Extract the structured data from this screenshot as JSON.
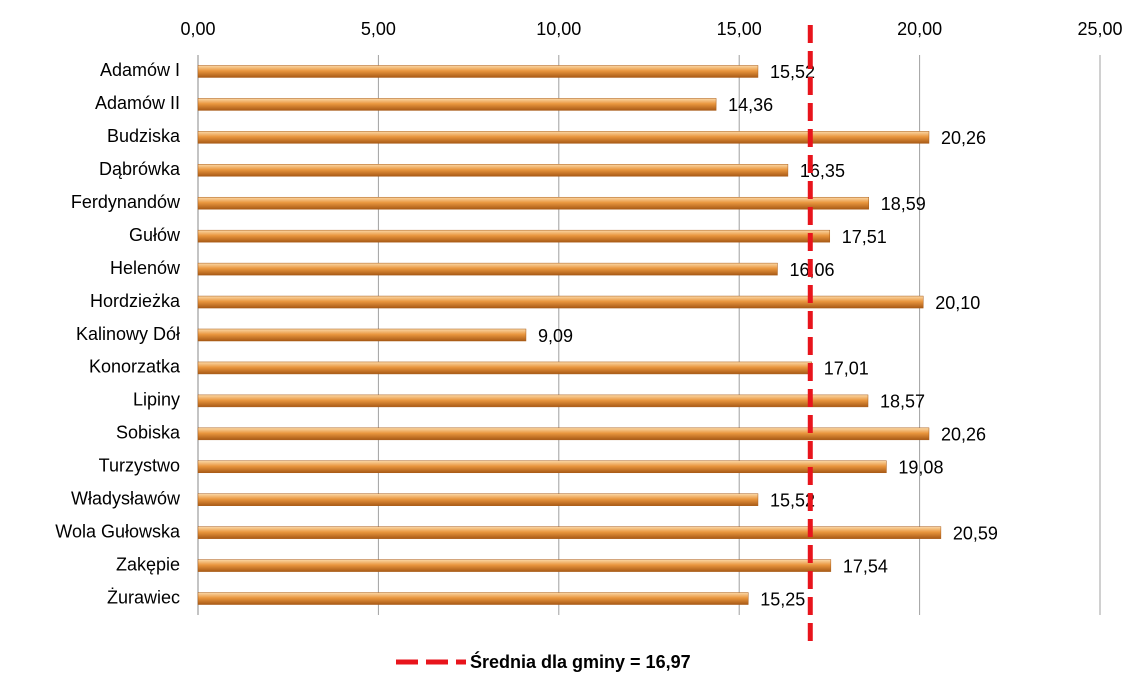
{
  "chart_data": {
    "type": "bar",
    "orientation": "horizontal",
    "categories": [
      "Adamów I",
      "Adamów II",
      "Budziska",
      "Dąbrówka",
      "Ferdynandów",
      "Gułów",
      "Helenów",
      "Hordzieżka",
      "Kalinowy Dół",
      "Konorzatka",
      "Lipiny",
      "Sobiska",
      "Turzystwo",
      "Władysławów",
      "Wola Gułowska",
      "Zakępie",
      "Żurawiec"
    ],
    "values": [
      15.52,
      14.36,
      20.26,
      16.35,
      18.59,
      17.51,
      16.06,
      20.1,
      9.09,
      17.01,
      18.57,
      20.26,
      19.08,
      15.52,
      20.59,
      17.54,
      15.25
    ],
    "value_labels": [
      "15,52",
      "14,36",
      "20,26",
      "16,35",
      "18,59",
      "17,51",
      "16,06",
      "20,10",
      "9,09",
      "17,01",
      "18,57",
      "20,26",
      "19,08",
      "15,52",
      "20,59",
      "17,54",
      "15,25"
    ],
    "color": "#e08a2c",
    "xlim": [
      0,
      25
    ],
    "xticks": [
      {
        "value": 0,
        "label": "0,00"
      },
      {
        "value": 5,
        "label": "5,00"
      },
      {
        "value": 10,
        "label": "10,00"
      },
      {
        "value": 15,
        "label": "15,00"
      },
      {
        "value": 20,
        "label": "20,00"
      },
      {
        "value": 25,
        "label": "25,00"
      }
    ],
    "grid": true,
    "reference_line": {
      "value": 16.97,
      "label": "Średnia dla gminy = 16,97",
      "color": "#e8141c"
    },
    "legend": "bottom"
  }
}
